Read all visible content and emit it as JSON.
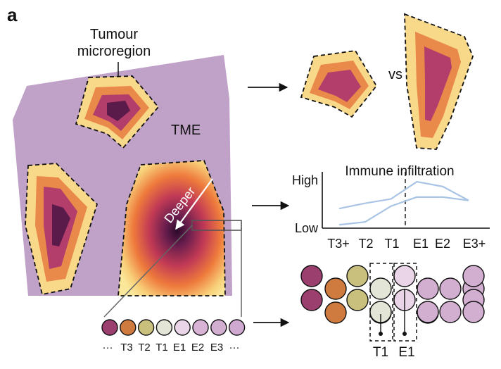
{
  "panel_label": "a",
  "labels": {
    "tumour_microregion_line1": "Tumour",
    "tumour_microregion_line2": "microregion",
    "tme": "TME",
    "deeper": "Deeper",
    "vs": "vs"
  },
  "chart_data": {
    "type": "line",
    "title": "Immune infiltration",
    "xlabel": "",
    "ylabel": "",
    "categories": [
      "T3+",
      "T2",
      "T1",
      "E1",
      "E2",
      "E3+"
    ],
    "y_tick_labels": [
      "Low",
      "High"
    ],
    "ylim": [
      0,
      1
    ],
    "boundary_between": [
      "T1",
      "E1"
    ],
    "series": [
      {
        "values": [
          0.38,
          0.49,
          0.58,
          0.94,
          0.84,
          0.55
        ]
      },
      {
        "values": [
          0.04,
          0.1,
          0.43,
          0.62,
          0.62,
          0.55
        ]
      }
    ],
    "series_color": "#a9c4e4"
  },
  "strip": {
    "labels": [
      "···",
      "T3",
      "T2",
      "T1",
      "E1",
      "E2",
      "E3",
      "···"
    ],
    "colors": [
      "#9b3f6f",
      "#cf7a3e",
      "#c8c07c",
      "#e3e5d6",
      "#ead5e8",
      "#d8b3d6",
      "#d2aed1",
      "#cfa9cf"
    ]
  },
  "grid": {
    "labels": [
      "T1",
      "E1"
    ],
    "columns": [
      {
        "color": "#9b3f6f",
        "count": 2
      },
      {
        "color": "#cf7a3e",
        "count": 2
      },
      {
        "color": "#c8c07c",
        "count": 2
      },
      {
        "color": "#e3e5d6",
        "count": 2
      },
      {
        "color": "#ead5e8",
        "count": 2
      },
      {
        "color": "#d2aed1",
        "count": 2
      },
      {
        "color": "#d2aed1",
        "count": 2
      },
      {
        "color": "#d2aed1",
        "count": 2
      },
      {
        "color": "#d2aed1",
        "count": 2
      }
    ]
  },
  "colors": {
    "tme": "#c0a1c8",
    "zone_outer": "#f8d98a",
    "zone_mid": "#ea8a4a",
    "zone_inner": "#b33d6b",
    "zone_core": "#5a1a4a"
  }
}
